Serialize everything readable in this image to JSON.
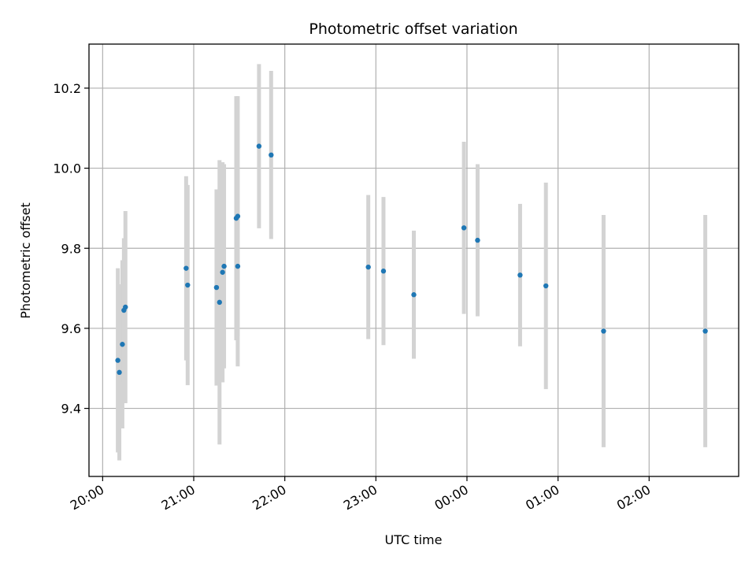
{
  "chart_data": {
    "type": "scatter",
    "title": "Photometric offset variation",
    "xlabel": "UTC time",
    "ylabel": "Photometric offset",
    "x_is_time": true,
    "xlim": [
      "19:51",
      "02:59"
    ],
    "ylim": [
      9.23,
      10.31
    ],
    "xticks": [
      "20:00",
      "21:00",
      "22:00",
      "23:00",
      "00:00",
      "01:00",
      "02:00"
    ],
    "yticks": [
      "9.4",
      "9.6",
      "9.8",
      "10.0",
      "10.2"
    ],
    "grid": true,
    "marker_color": "#1f77b4",
    "errorbar_color": "#d3d3d3",
    "series": [
      {
        "points": [
          {
            "x": "20:10",
            "y": 9.52,
            "yerr": 0.23
          },
          {
            "x": "20:11",
            "y": 9.49,
            "yerr": 0.22
          },
          {
            "x": "20:13",
            "y": 9.56,
            "yerr": 0.21
          },
          {
            "x": "20:14",
            "y": 9.645,
            "yerr": 0.18
          },
          {
            "x": "20:15",
            "y": 9.653,
            "yerr": 0.24
          },
          {
            "x": "20:55",
            "y": 9.75,
            "yerr": 0.23
          },
          {
            "x": "20:56",
            "y": 9.708,
            "yerr": 0.25
          },
          {
            "x": "21:15",
            "y": 9.702,
            "yerr": 0.245
          },
          {
            "x": "21:17",
            "y": 9.665,
            "yerr": 0.355
          },
          {
            "x": "21:19",
            "y": 9.74,
            "yerr": 0.275
          },
          {
            "x": "21:20",
            "y": 9.755,
            "yerr": 0.255
          },
          {
            "x": "21:28",
            "y": 9.875,
            "yerr": 0.305
          },
          {
            "x": "21:29",
            "y": 9.88,
            "yerr": 0.3
          },
          {
            "x": "21:29",
            "y": 9.755,
            "yerr": 0.25
          },
          {
            "x": "21:43",
            "y": 10.055,
            "yerr": 0.205
          },
          {
            "x": "21:51",
            "y": 10.033,
            "yerr": 0.21
          },
          {
            "x": "22:55",
            "y": 9.753,
            "yerr": 0.18
          },
          {
            "x": "23:05",
            "y": 9.743,
            "yerr": 0.185
          },
          {
            "x": "23:25",
            "y": 9.684,
            "yerr": 0.16
          },
          {
            "x": "23:58",
            "y": 9.851,
            "yerr": 0.215
          },
          {
            "x": "00:07",
            "y": 9.82,
            "yerr": 0.19
          },
          {
            "x": "00:35",
            "y": 9.733,
            "yerr": 0.178
          },
          {
            "x": "00:52",
            "y": 9.706,
            "yerr": 0.258
          },
          {
            "x": "01:30",
            "y": 9.593,
            "yerr": 0.29
          },
          {
            "x": "02:37",
            "y": 9.593,
            "yerr": 0.29
          }
        ]
      }
    ]
  }
}
